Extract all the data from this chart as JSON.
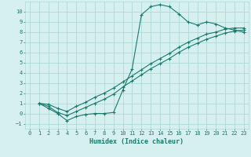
{
  "title": "",
  "xlabel": "Humidex (Indice chaleur)",
  "bg_color": "#d6f0ef",
  "grid_color": "#b0d8d8",
  "line_color": "#1a7a6e",
  "xlim": [
    -0.5,
    23.5
  ],
  "ylim": [
    -1.5,
    11.0
  ],
  "xticks": [
    0,
    1,
    2,
    3,
    4,
    5,
    6,
    7,
    8,
    9,
    10,
    11,
    12,
    13,
    14,
    15,
    16,
    17,
    18,
    19,
    20,
    21,
    22,
    23
  ],
  "yticks": [
    -1,
    0,
    1,
    2,
    3,
    4,
    5,
    6,
    7,
    8,
    9,
    10
  ],
  "line1_x": [
    1,
    2,
    3,
    4,
    5,
    6,
    7,
    8,
    9,
    10,
    11,
    12,
    13,
    14,
    15,
    16,
    17,
    18,
    19,
    20,
    21,
    22,
    23
  ],
  "line1_y": [
    1.0,
    0.5,
    0.0,
    -0.7,
    -0.3,
    -0.1,
    0.0,
    0.0,
    0.1,
    2.3,
    4.4,
    9.7,
    10.5,
    10.7,
    10.5,
    9.8,
    9.0,
    8.7,
    9.0,
    8.8,
    8.4,
    8.2,
    8.0
  ],
  "line2_x": [
    1,
    2,
    3,
    4,
    5,
    6,
    7,
    8,
    9,
    10,
    11,
    12,
    13,
    14,
    15,
    16,
    17,
    18,
    19,
    20,
    21,
    22,
    23
  ],
  "line2_y": [
    1.0,
    0.7,
    0.1,
    -0.2,
    0.2,
    0.6,
    1.0,
    1.4,
    1.9,
    2.6,
    3.2,
    3.8,
    4.4,
    4.9,
    5.4,
    6.0,
    6.5,
    6.9,
    7.3,
    7.6,
    7.9,
    8.1,
    8.2
  ],
  "line3_x": [
    1,
    2,
    3,
    4,
    5,
    6,
    7,
    8,
    9,
    10,
    11,
    12,
    13,
    14,
    15,
    16,
    17,
    18,
    19,
    20,
    21,
    22,
    23
  ],
  "line3_y": [
    1.0,
    0.9,
    0.5,
    0.2,
    0.7,
    1.1,
    1.6,
    2.0,
    2.5,
    3.1,
    3.7,
    4.3,
    4.9,
    5.4,
    5.9,
    6.5,
    7.0,
    7.4,
    7.8,
    8.0,
    8.3,
    8.4,
    8.4
  ]
}
